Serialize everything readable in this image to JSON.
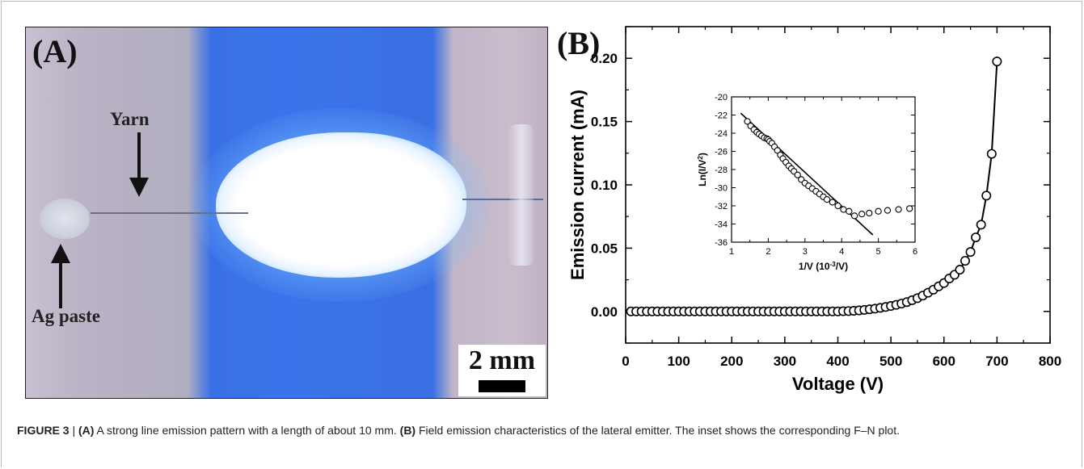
{
  "figure": {
    "caption_label": "FIGURE 3",
    "caption_sep": " | ",
    "caption_a_tag": "(A)",
    "caption_a_text": " A strong line emission pattern with a length of about 10 mm. ",
    "caption_b_tag": "(B)",
    "caption_b_text": " Field emission characteristics of the lateral emitter. The inset shows the corresponding F–N plot."
  },
  "photo": {
    "panel_label": "(A)",
    "yarn_label": "Yarn",
    "paste_label": "Ag paste",
    "scale_label": "2 mm"
  },
  "chart_data": [
    {
      "type": "scatter",
      "panel_label": "(B)",
      "xlabel": "Voltage (V)",
      "ylabel": "Emission current (mA)",
      "xlim": [
        0,
        800
      ],
      "ylim": [
        -0.025,
        0.225
      ],
      "xticks": [
        0,
        100,
        200,
        300,
        400,
        500,
        600,
        700,
        800
      ],
      "yticks": [
        0.0,
        0.05,
        0.1,
        0.15,
        0.2
      ],
      "ytick_labels": [
        "0.00",
        "0.05",
        "0.10",
        "0.15",
        "0.20"
      ],
      "marker": "open-circle",
      "connected_line": true,
      "x": [
        10,
        20,
        30,
        40,
        50,
        60,
        70,
        80,
        90,
        100,
        110,
        120,
        130,
        140,
        150,
        160,
        170,
        180,
        190,
        200,
        210,
        220,
        230,
        240,
        250,
        260,
        270,
        280,
        290,
        300,
        310,
        320,
        330,
        340,
        350,
        360,
        370,
        380,
        390,
        400,
        410,
        420,
        430,
        440,
        450,
        460,
        470,
        480,
        490,
        500,
        510,
        520,
        530,
        540,
        550,
        560,
        570,
        580,
        590,
        600,
        610,
        620,
        630,
        640,
        650,
        660,
        670,
        680,
        690,
        700
      ],
      "y": [
        0,
        0,
        0,
        0,
        0,
        0,
        0,
        0,
        0,
        0,
        0,
        0,
        0,
        0,
        0,
        0,
        0,
        0,
        0,
        0,
        0,
        0,
        0,
        0,
        0,
        0,
        0,
        0,
        0,
        0,
        0,
        0,
        0,
        0,
        0,
        0,
        0,
        0,
        0,
        0,
        0.0002,
        0.0003,
        0.0005,
        0.0008,
        0.0012,
        0.0017,
        0.0022,
        0.0028,
        0.0035,
        0.0043,
        0.0052,
        0.0062,
        0.0074,
        0.0089,
        0.0105,
        0.0125,
        0.0148,
        0.0172,
        0.0198,
        0.0224,
        0.026,
        0.029,
        0.033,
        0.04,
        0.047,
        0.0585,
        0.0685,
        0.0915,
        0.1245,
        0.1975
      ]
    },
    {
      "type": "scatter",
      "role": "inset",
      "xlabel": "1/V (10",
      "xlabel_sup": "-3",
      "xlabel_end": "/V)",
      "ylabel": "Ln(I/V",
      "ylabel_sup": "2",
      "ylabel_end": ")",
      "xlim": [
        1,
        6
      ],
      "ylim": [
        -36,
        -20
      ],
      "xticks": [
        1,
        2,
        3,
        4,
        5,
        6
      ],
      "yticks": [
        -20,
        -22,
        -24,
        -26,
        -28,
        -30,
        -32,
        -34,
        -36
      ],
      "marker": "open-circle",
      "x": [
        1.43,
        1.52,
        1.61,
        1.69,
        1.75,
        1.82,
        1.89,
        1.96,
        2.0,
        2.04,
        2.1,
        2.17,
        2.25,
        2.33,
        2.4,
        2.48,
        2.56,
        2.63,
        2.7,
        2.8,
        2.9,
        3.0,
        3.1,
        3.2,
        3.3,
        3.4,
        3.5,
        3.6,
        3.75,
        3.9,
        4.05,
        4.2,
        4.35,
        4.55,
        4.75,
        5.0,
        5.25,
        5.55,
        5.85
      ],
      "y": [
        -22.7,
        -23.2,
        -23.6,
        -23.9,
        -24.1,
        -24.3,
        -24.5,
        -24.6,
        -24.7,
        -24.9,
        -25.1,
        -25.5,
        -25.9,
        -26.4,
        -26.8,
        -27.2,
        -27.6,
        -27.9,
        -28.2,
        -28.6,
        -29.1,
        -29.5,
        -29.8,
        -30.1,
        -30.4,
        -30.7,
        -31.0,
        -31.3,
        -31.6,
        -32.0,
        -32.4,
        -32.6,
        -33.1,
        -32.9,
        -32.8,
        -32.6,
        -32.5,
        -32.4,
        -32.3
      ],
      "fit_line": {
        "x": [
          1.25,
          4.85
        ],
        "y": [
          -21.8,
          -35.2
        ]
      }
    }
  ]
}
